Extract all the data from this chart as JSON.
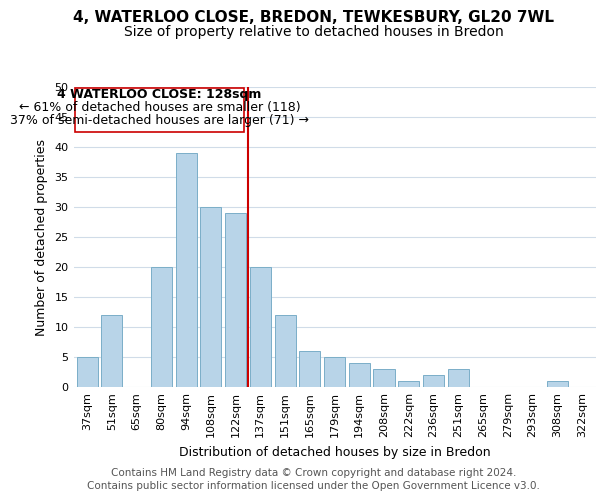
{
  "title": "4, WATERLOO CLOSE, BREDON, TEWKESBURY, GL20 7WL",
  "subtitle": "Size of property relative to detached houses in Bredon",
  "xlabel": "Distribution of detached houses by size in Bredon",
  "ylabel": "Number of detached properties",
  "bar_labels": [
    "37sqm",
    "51sqm",
    "65sqm",
    "80sqm",
    "94sqm",
    "108sqm",
    "122sqm",
    "137sqm",
    "151sqm",
    "165sqm",
    "179sqm",
    "194sqm",
    "208sqm",
    "222sqm",
    "236sqm",
    "251sqm",
    "265sqm",
    "279sqm",
    "293sqm",
    "308sqm",
    "322sqm"
  ],
  "bar_values": [
    5,
    12,
    0,
    20,
    39,
    30,
    29,
    20,
    12,
    6,
    5,
    4,
    3,
    1,
    2,
    3,
    0,
    0,
    0,
    1,
    0
  ],
  "bar_color": "#b8d4e8",
  "bar_edge_color": "#7aaec8",
  "vline_x": 6.5,
  "vline_color": "#cc0000",
  "ylim": [
    0,
    50
  ],
  "yticks": [
    0,
    5,
    10,
    15,
    20,
    25,
    30,
    35,
    40,
    45,
    50
  ],
  "annotation_title": "4 WATERLOO CLOSE: 128sqm",
  "annotation_line1": "← 61% of detached houses are smaller (118)",
  "annotation_line2": "37% of semi-detached houses are larger (71) →",
  "annotation_box_color": "#ffffff",
  "annotation_box_edge": "#cc0000",
  "footer1": "Contains HM Land Registry data © Crown copyright and database right 2024.",
  "footer2": "Contains public sector information licensed under the Open Government Licence v3.0.",
  "title_fontsize": 11,
  "subtitle_fontsize": 10,
  "axis_label_fontsize": 9,
  "tick_fontsize": 8,
  "annotation_fontsize": 9,
  "footer_fontsize": 7.5,
  "background_color": "#ffffff",
  "grid_color": "#d0dce8"
}
